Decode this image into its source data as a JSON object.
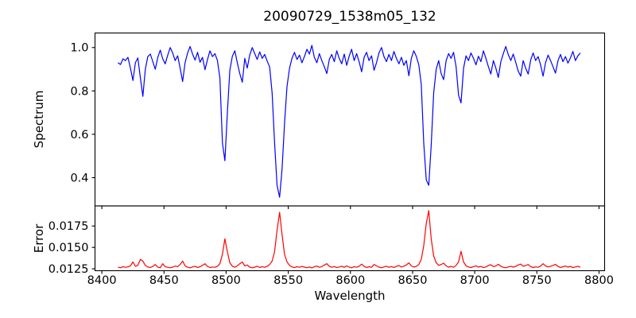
{
  "chart_data": {
    "type": "line",
    "title": "20090729_1538m05_132",
    "xlabel": "Wavelength",
    "xlim": [
      8394.5,
      8804.5
    ],
    "xticks": [
      8400,
      8450,
      8500,
      8550,
      8600,
      8650,
      8700,
      8750,
      8800
    ],
    "xtick_labels": [
      "8400",
      "8450",
      "8500",
      "8550",
      "8600",
      "8650",
      "8700",
      "8750",
      "8800"
    ],
    "x_start": 8413,
    "x_step": 2,
    "grid": false,
    "legend": "none",
    "panels": [
      {
        "name": "spectrum",
        "ylabel": "Spectrum",
        "color": "#0000ff",
        "ylim": [
          0.27,
          1.067
        ],
        "yticks": [
          0.4,
          0.6,
          0.8,
          1.0
        ],
        "ytick_labels": [
          "0.4",
          "0.6",
          "0.8",
          "1.0"
        ],
        "features": "absorption line minima: 8498->0.48, 8542->0.31, 8662->0.37, 8431->0.78, 8688->0.75",
        "values": [
          0.93,
          0.922,
          0.948,
          0.94,
          0.955,
          0.905,
          0.848,
          0.93,
          0.952,
          0.86,
          0.775,
          0.9,
          0.958,
          0.97,
          0.935,
          0.9,
          0.955,
          0.988,
          0.948,
          0.925,
          0.965,
          1.0,
          0.975,
          0.94,
          0.962,
          0.905,
          0.843,
          0.93,
          0.975,
          1.005,
          0.97,
          0.942,
          0.978,
          0.932,
          0.955,
          0.898,
          0.945,
          0.985,
          0.958,
          0.972,
          0.94,
          0.86,
          0.56,
          0.478,
          0.7,
          0.895,
          0.96,
          0.985,
          0.93,
          0.88,
          0.84,
          0.95,
          0.905,
          0.965,
          1.0,
          0.972,
          0.945,
          0.98,
          0.95,
          0.968,
          0.938,
          0.91,
          0.79,
          0.56,
          0.365,
          0.31,
          0.44,
          0.65,
          0.82,
          0.905,
          0.95,
          0.978,
          0.945,
          0.965,
          0.93,
          0.958,
          0.992,
          0.97,
          1.01,
          0.955,
          0.93,
          0.972,
          0.94,
          0.912,
          0.88,
          0.945,
          0.968,
          0.935,
          0.985,
          0.95,
          0.925,
          0.97,
          0.918,
          0.96,
          0.992,
          0.94,
          0.972,
          0.935,
          0.888,
          0.955,
          0.978,
          0.94,
          0.962,
          0.895,
          0.93,
          0.975,
          1.0,
          0.958,
          0.935,
          0.968,
          0.94,
          0.982,
          0.95,
          0.925,
          0.955,
          0.918,
          0.94,
          0.87,
          0.95,
          0.985,
          0.96,
          0.92,
          0.83,
          0.56,
          0.39,
          0.365,
          0.55,
          0.79,
          0.9,
          0.94,
          0.88,
          0.852,
          0.94,
          0.972,
          0.95,
          0.978,
          0.912,
          0.78,
          0.745,
          0.905,
          0.962,
          0.94,
          0.975,
          0.95,
          0.92,
          0.96,
          0.935,
          0.985,
          0.95,
          0.912,
          0.878,
          0.94,
          0.905,
          0.862,
          0.935,
          0.972,
          1.005,
          0.968,
          0.94,
          0.97,
          0.932,
          0.892,
          0.868,
          0.94,
          0.905,
          0.878,
          0.942,
          0.975,
          0.94,
          0.958,
          0.92,
          0.868,
          0.93,
          0.965,
          0.94,
          0.912,
          0.882,
          0.94,
          0.968,
          0.935,
          0.958,
          0.928,
          0.952,
          0.982,
          0.94,
          0.962,
          0.975
        ]
      },
      {
        "name": "error",
        "ylabel": "Error",
        "color": "#ff0000",
        "ylim": [
          0.01228,
          0.01985
        ],
        "yticks": [
          0.0125,
          0.015,
          0.0175
        ],
        "ytick_labels": [
          "0.0125",
          "0.0150",
          "0.0175"
        ],
        "features": "spike maxima: 8498->0.0160, 8542->0.0191, 8662->0.0193, 8688->0.0146; baseline ~0.0127",
        "values": [
          0.0127,
          0.01262,
          0.01275,
          0.01268,
          0.01273,
          0.01285,
          0.0133,
          0.0128,
          0.0129,
          0.0136,
          0.0134,
          0.0129,
          0.01272,
          0.01265,
          0.01278,
          0.013,
          0.0127,
          0.01262,
          0.0131,
          0.01275,
          0.01268,
          0.01262,
          0.0127,
          0.01282,
          0.01275,
          0.013,
          0.0134,
          0.01285,
          0.01268,
          0.01262,
          0.01272,
          0.0128,
          0.01266,
          0.01274,
          0.0129,
          0.0131,
          0.01278,
          0.01265,
          0.01272,
          0.01268,
          0.0128,
          0.0131,
          0.0142,
          0.016,
          0.0145,
          0.0132,
          0.0128,
          0.01268,
          0.01285,
          0.0131,
          0.0133,
          0.01285,
          0.01295,
          0.0127,
          0.01262,
          0.0127,
          0.0128,
          0.01265,
          0.01275,
          0.01268,
          0.01278,
          0.013,
          0.0134,
          0.0145,
          0.017,
          0.0191,
          0.0165,
          0.0142,
          0.0133,
          0.0129,
          0.01272,
          0.01264,
          0.01275,
          0.01268,
          0.01278,
          0.0127,
          0.01263,
          0.01272,
          0.0126,
          0.01274,
          0.01282,
          0.01268,
          0.01275,
          0.01295,
          0.0131,
          0.0128,
          0.01268,
          0.01276,
          0.01264,
          0.01272,
          0.0128,
          0.01268,
          0.01285,
          0.0127,
          0.01262,
          0.01275,
          0.01268,
          0.0128,
          0.01305,
          0.01278,
          0.01266,
          0.01274,
          0.01268,
          0.013,
          0.01285,
          0.0127,
          0.01262,
          0.01273,
          0.0128,
          0.01268,
          0.01276,
          0.01266,
          0.01278,
          0.01288,
          0.01272,
          0.0128,
          0.01295,
          0.0132,
          0.01285,
          0.0127,
          0.01278,
          0.013,
          0.0136,
          0.0152,
          0.0178,
          0.0193,
          0.016,
          0.014,
          0.0132,
          0.0129,
          0.013,
          0.01315,
          0.01285,
          0.0127,
          0.01278,
          0.01268,
          0.0129,
          0.0133,
          0.01455,
          0.0133,
          0.01285,
          0.01272,
          0.01265,
          0.01275,
          0.01285,
          0.0127,
          0.01278,
          0.01264,
          0.01272,
          0.01288,
          0.01298,
          0.01275,
          0.01285,
          0.01302,
          0.0128,
          0.01268,
          0.01262,
          0.01272,
          0.0128,
          0.0127,
          0.01278,
          0.01295,
          0.01305,
          0.0128,
          0.01288,
          0.013,
          0.01275,
          0.01265,
          0.01273,
          0.01268,
          0.01282,
          0.0131,
          0.01285,
          0.01272,
          0.0128,
          0.0129,
          0.01302,
          0.01278,
          0.01266,
          0.01274,
          0.01282,
          0.0127,
          0.01278,
          0.01264,
          0.01272,
          0.0128,
          0.01268
        ]
      }
    ]
  }
}
